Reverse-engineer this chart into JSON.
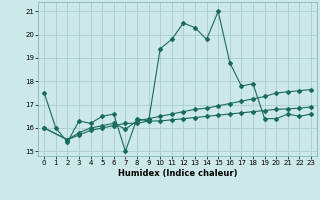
{
  "xlabel": "Humidex (Indice chaleur)",
  "bg_color": "#cce8e8",
  "grid_color": "#aacccc",
  "line_color": "#1a6b5a",
  "xlim": [
    -0.5,
    23.5
  ],
  "ylim": [
    14.8,
    21.4
  ],
  "xticks": [
    0,
    1,
    2,
    3,
    4,
    5,
    6,
    7,
    8,
    9,
    10,
    11,
    12,
    13,
    14,
    15,
    16,
    17,
    18,
    19,
    20,
    21,
    22,
    23
  ],
  "yticks": [
    15,
    16,
    17,
    18,
    19,
    20,
    21
  ],
  "line1_x": [
    0,
    1,
    2,
    3,
    4,
    5,
    6,
    7,
    8,
    9,
    10,
    11,
    12,
    13,
    14,
    15,
    16,
    17,
    18,
    19,
    20,
    21,
    22,
    23
  ],
  "line1_y": [
    17.5,
    16.0,
    15.4,
    16.3,
    16.2,
    16.5,
    16.6,
    15.0,
    16.4,
    16.3,
    19.4,
    19.8,
    20.5,
    20.3,
    19.8,
    21.0,
    18.8,
    17.8,
    17.9,
    16.4,
    16.4,
    16.6,
    16.5,
    16.6
  ],
  "line2_x": [
    0,
    2,
    3,
    4,
    5,
    6,
    7,
    8,
    9,
    10,
    11,
    12,
    13,
    14,
    15,
    16,
    17,
    18,
    19,
    20,
    21,
    22,
    23
  ],
  "line2_y": [
    16.0,
    15.5,
    15.8,
    16.0,
    16.1,
    16.2,
    15.95,
    16.3,
    16.4,
    16.5,
    16.6,
    16.7,
    16.8,
    16.85,
    16.95,
    17.05,
    17.15,
    17.25,
    17.35,
    17.5,
    17.55,
    17.6,
    17.65
  ],
  "line3_x": [
    0,
    2,
    3,
    4,
    5,
    6,
    7,
    8,
    9,
    10,
    11,
    12,
    13,
    14,
    15,
    16,
    17,
    18,
    19,
    20,
    21,
    22,
    23
  ],
  "line3_y": [
    16.0,
    15.5,
    15.7,
    15.9,
    16.0,
    16.1,
    16.2,
    16.2,
    16.3,
    16.3,
    16.35,
    16.4,
    16.45,
    16.5,
    16.55,
    16.6,
    16.65,
    16.7,
    16.75,
    16.8,
    16.82,
    16.85,
    16.9
  ]
}
